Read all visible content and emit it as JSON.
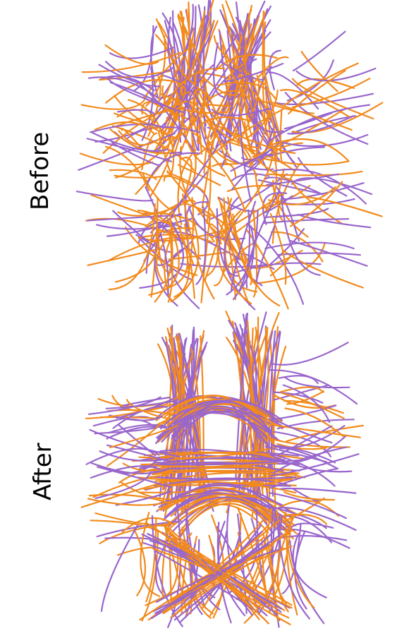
{
  "labels": {
    "before": "Before",
    "after": "After"
  },
  "colors": {
    "bundle_a": "#F28A1C",
    "bundle_b": "#9966CC",
    "background": "#FFFFFF",
    "text": "#000000"
  },
  "panels": [
    {
      "id": "before",
      "label_key": "before",
      "style": "scattered"
    },
    {
      "id": "after",
      "label_key": "after",
      "style": "organized"
    }
  ]
}
